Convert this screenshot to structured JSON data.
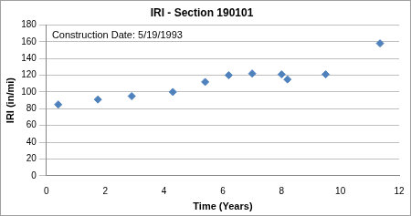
{
  "chart_data": {
    "type": "scatter",
    "title": "IRI - Section 190101",
    "annotation": "Construction Date: 5/19/1993",
    "x_label": "Time (Years)",
    "y_label": "IRI (in/mi)",
    "x": [
      0.4,
      1.75,
      2.9,
      4.3,
      5.4,
      6.2,
      7.0,
      8.0,
      8.2,
      9.5,
      11.35
    ],
    "values": [
      85,
      91,
      95,
      100,
      112,
      120,
      122,
      121,
      115,
      121,
      158
    ],
    "color": "#4f81bd",
    "marker": "diamond",
    "xlim": [
      0,
      12
    ],
    "xticks": [
      0,
      2,
      4,
      6,
      8,
      10,
      12
    ],
    "ylim": [
      0,
      180
    ],
    "yticks": [
      0,
      20,
      40,
      60,
      80,
      100,
      120,
      140,
      160,
      180
    ],
    "grid": true
  }
}
